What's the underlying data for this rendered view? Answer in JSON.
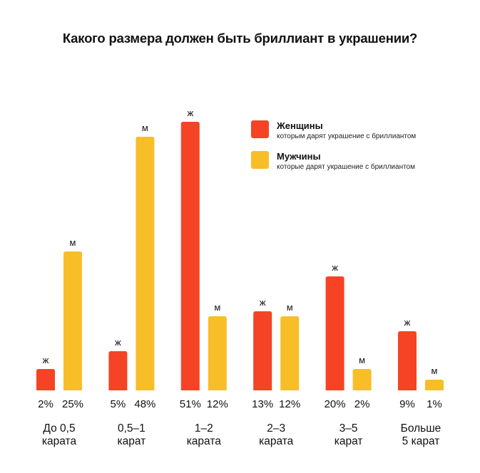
{
  "chart_data": {
    "type": "bar",
    "title": "Какого размера должен быть бриллиант в украшении?",
    "xlabel": "",
    "ylabel": "",
    "grid": false,
    "legend_position": "top-right",
    "categories": [
      [
        "До 0,5",
        "карата"
      ],
      [
        "0,5–1",
        "карат"
      ],
      [
        "1–2",
        "карата"
      ],
      [
        "2–3",
        "карата"
      ],
      [
        "3–5",
        "карат"
      ],
      [
        "Больше",
        "5 карат"
      ]
    ],
    "series": [
      {
        "name": "Женщины",
        "description": "которым дарят украшение с бриллиантом",
        "bar_label": "ж",
        "color": "#F54325",
        "values": [
          2,
          5,
          51,
          13,
          20,
          9
        ]
      },
      {
        "name": "Мужчины",
        "description": "которые дарят украшение с бриллиантом",
        "bar_label": "м",
        "color": "#F8BE28",
        "values": [
          25,
          48,
          12,
          12,
          2,
          1
        ]
      }
    ],
    "value_suffix": "%",
    "ylim": [
      0,
      51
    ]
  }
}
